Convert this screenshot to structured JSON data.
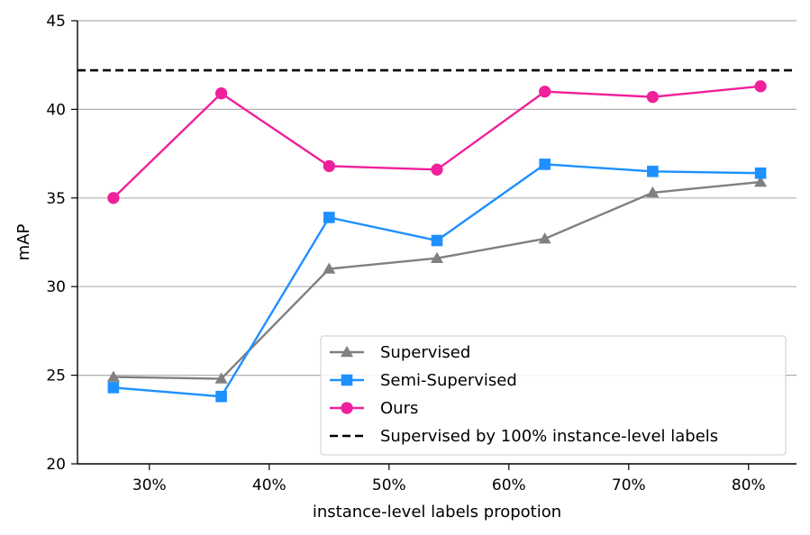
{
  "chart_data": {
    "type": "line",
    "xlabel": "instance-level labels propotion",
    "ylabel": "mAP",
    "x": [
      27,
      36,
      45,
      54,
      63,
      72,
      81
    ],
    "xlim": [
      24,
      84
    ],
    "ylim": [
      20,
      45
    ],
    "xticks": [
      30,
      40,
      50,
      60,
      70,
      80
    ],
    "xtick_labels": [
      "30%",
      "40%",
      "50%",
      "60%",
      "70%",
      "80%"
    ],
    "yticks": [
      20,
      25,
      30,
      35,
      40,
      45
    ],
    "ytick_labels": [
      "20",
      "25",
      "30",
      "35",
      "40",
      "45"
    ],
    "grid": "horizontal",
    "legend_position": "lower-right",
    "series": [
      {
        "name": "Supervised",
        "values": [
          24.9,
          24.8,
          31.0,
          31.6,
          32.7,
          35.3,
          35.9
        ],
        "color": "#808080",
        "marker": "triangle"
      },
      {
        "name": "Semi-Supervised",
        "values": [
          24.3,
          23.8,
          33.9,
          32.6,
          36.9,
          36.5,
          36.4
        ],
        "color": "#1e90ff",
        "marker": "square"
      },
      {
        "name": "Ours",
        "values": [
          35.0,
          40.9,
          36.8,
          36.6,
          41.0,
          40.7,
          41.3
        ],
        "color": "#f0209a",
        "marker": "circle"
      }
    ],
    "reference_line": {
      "name": "Supervised by 100% instance-level labels",
      "value": 42.2,
      "color": "#000000",
      "style": "dashed"
    }
  }
}
